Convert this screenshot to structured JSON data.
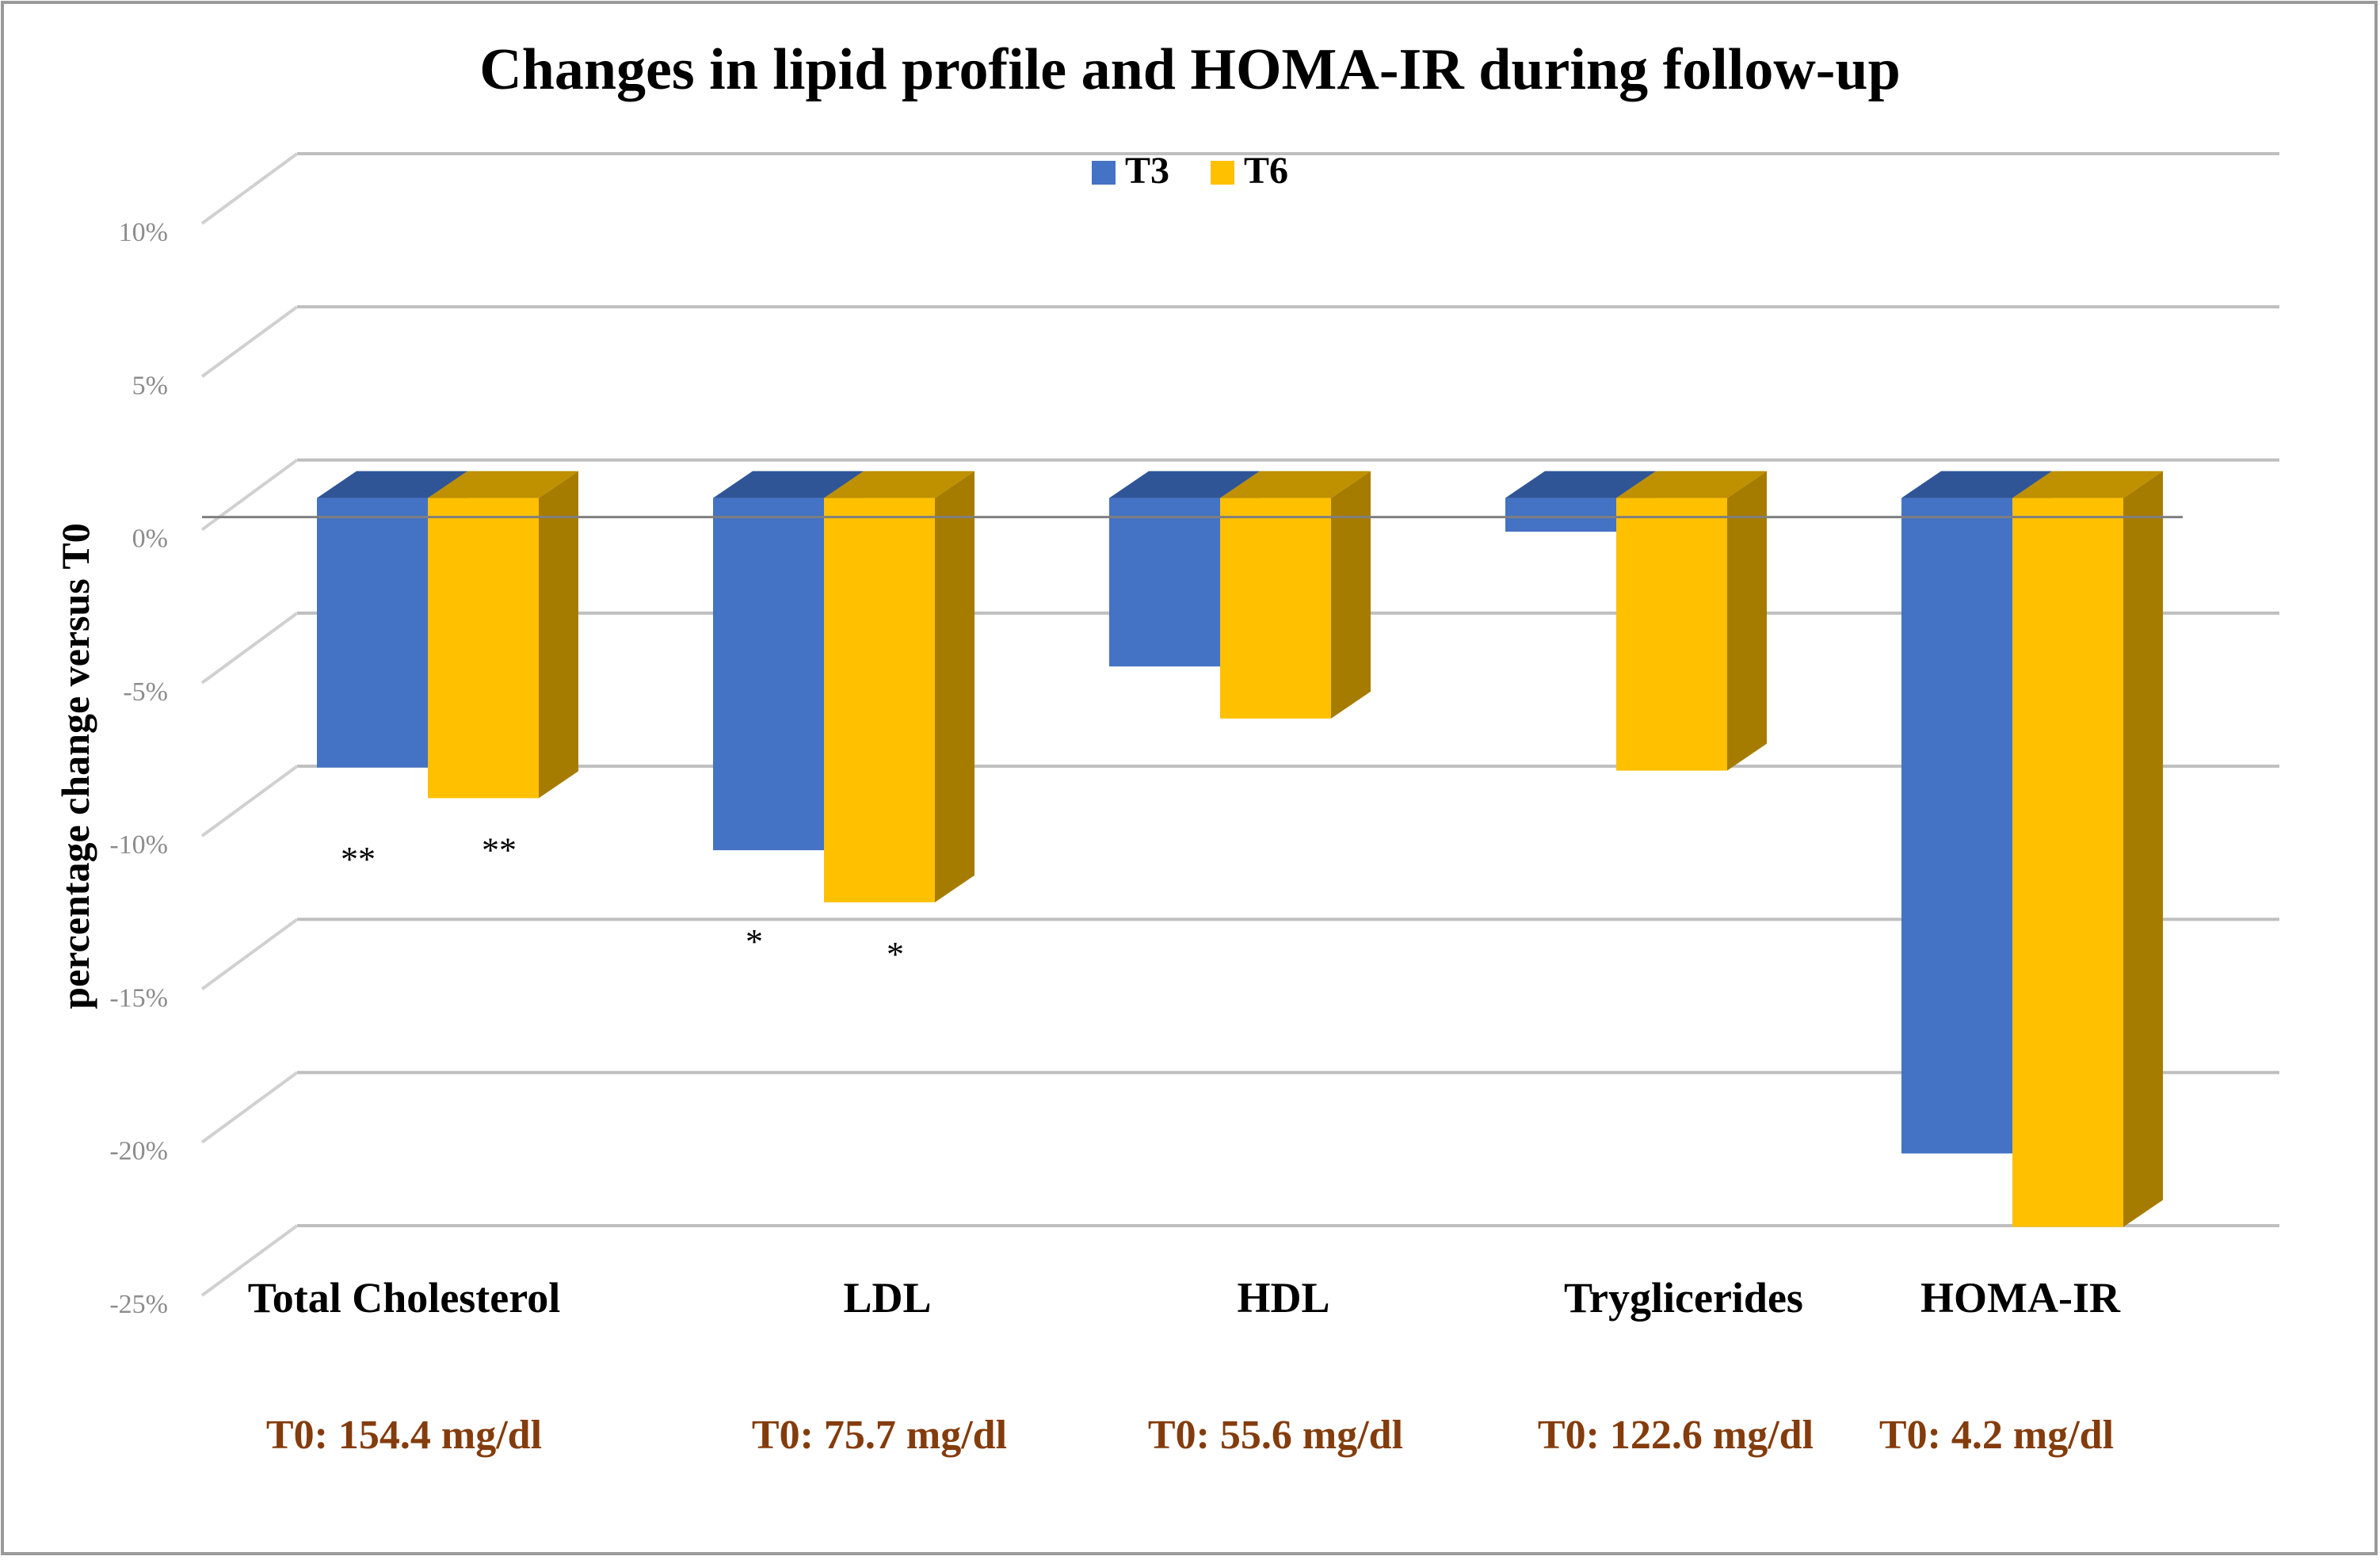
{
  "chart_data": {
    "type": "bar",
    "title": "Changes in lipid profile and HOMA-IR during follow-up",
    "ylabel": "percentage change versus T0",
    "xlabel": "",
    "ylim": [
      -25,
      10
    ],
    "yticks": [
      10,
      5,
      0,
      -5,
      -10,
      -15,
      -20,
      -25
    ],
    "ytick_labels": [
      "10%",
      "5%",
      "0%",
      "-5%",
      "-10%",
      "-15%",
      "-20%",
      "-25%"
    ],
    "grid": true,
    "legend_position": "top-center",
    "categories": [
      "Total Cholesterol",
      "LDL",
      "HDL",
      "Tryglicerides",
      "HOMA-IR"
    ],
    "baselines": [
      "T0: 154.4 mg/dl",
      "T0: 75.7 mg/dl",
      "T0: 55.6 mg/dl",
      "T0: 122.6 mg/dl",
      "T0: 4.2 mg/dl"
    ],
    "series": [
      {
        "name": "T3",
        "color": "#4472C4",
        "top_color": "#2F5597",
        "side_color": "#2F4F8A",
        "values": [
          -8.8,
          -11.5,
          -5.5,
          -1.1,
          -21.4
        ],
        "annotations": [
          "**",
          "*",
          "",
          "",
          ""
        ]
      },
      {
        "name": "T6",
        "color": "#FFC000",
        "top_color": "#BF9000",
        "side_color": "#A67C00",
        "values": [
          -9.8,
          -13.2,
          -7.2,
          -8.9,
          -23.8
        ],
        "annotations": [
          "**",
          "*",
          "",
          "",
          ""
        ]
      }
    ],
    "colors": {
      "baseline_text": "#843C0C",
      "axis_text": "#8C8C8C",
      "grid": "#BFBFBF",
      "title": "#000000"
    }
  }
}
